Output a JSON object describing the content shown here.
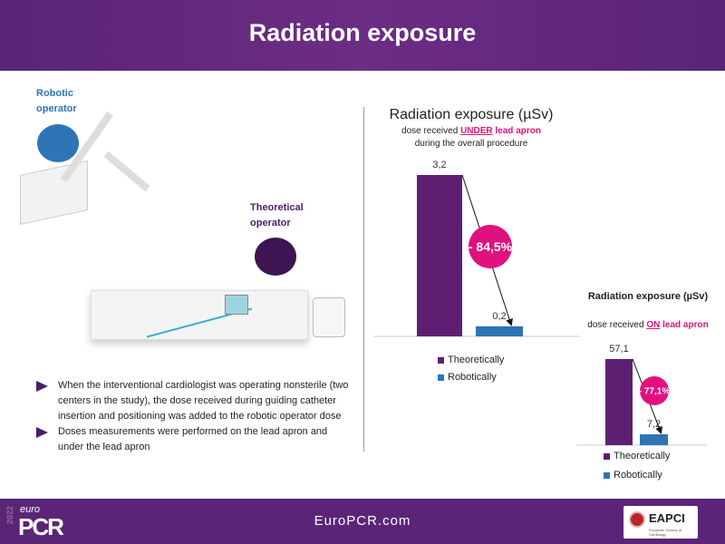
{
  "header": {
    "title": "Radiation exposure"
  },
  "illustration": {
    "robotic_label": "Robotic operator",
    "theoretical_label": "Theoretical operator"
  },
  "bullets": [
    "When the interventional cardiologist was operating nonsterile (two centers in the study), the dose received during guiding catheter insertion and positioning was added to the robotic operator dose",
    "Doses measurements were performed on the lead apron and under the lead apron"
  ],
  "footer": {
    "site": "EuroPCR.com",
    "logo_year": "2022",
    "logo_euro": "euro",
    "logo_pcr": "PCR",
    "partner": "EAPCI",
    "partner_sub": "European Society of Cardiology"
  },
  "colors": {
    "theoretical": "#5e1f73",
    "robotic": "#2e75b6",
    "badge": "#e0117f"
  },
  "chart_data": [
    {
      "type": "bar",
      "title": "Radiation exposure (µSv)",
      "subtitle_pre": "dose received ",
      "subtitle_em": "UNDER",
      "subtitle_post": " lead apron",
      "subtitle2": "during the overall procedure",
      "categories": [
        "Theoretically",
        "Robotically"
      ],
      "values": [
        3.2,
        0.2
      ],
      "value_labels": [
        "3,2",
        "0,2"
      ],
      "ylim": [
        0,
        3.2
      ],
      "reduction": "- 84,5%",
      "legend": [
        "Theoretically",
        "Robotically"
      ]
    },
    {
      "type": "bar",
      "title": "Radiation exposure (µSv)",
      "subtitle_pre": "dose received ",
      "subtitle_em": "ON",
      "subtitle_post": " lead apron",
      "subtitle2": "",
      "categories": [
        "Theoretically",
        "Robotically"
      ],
      "values": [
        57.1,
        7.2
      ],
      "value_labels": [
        "57,1",
        "7,2"
      ],
      "ylim": [
        0,
        57.1
      ],
      "reduction": "- 77,1%",
      "legend": [
        "Theoretically",
        "Robotically"
      ]
    }
  ]
}
